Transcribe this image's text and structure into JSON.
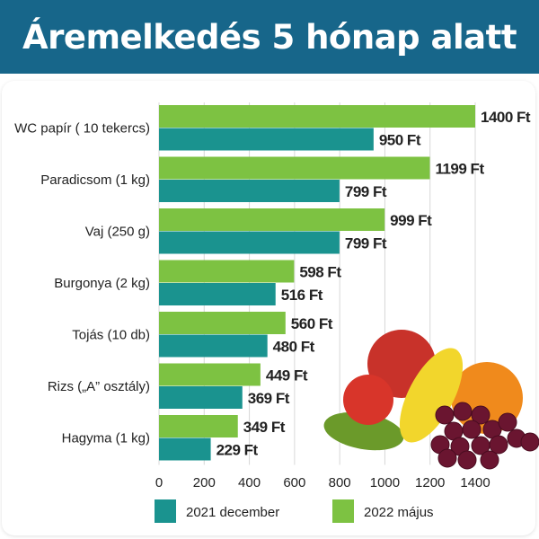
{
  "chart_data": {
    "type": "bar",
    "orientation": "horizontal",
    "title": "Áremelkedés 5 hónap alatt",
    "categories": [
      "WC papír ( 10 tekercs)",
      "Paradicsom (1 kg)",
      "Vaj (250 g)",
      "Burgonya (2 kg)",
      "Tojás (10 db)",
      "Rizs („A” osztály)",
      "Hagyma (1 kg)"
    ],
    "series": [
      {
        "name": "2022 május",
        "color": "#7dc242",
        "values": [
          1400,
          1199,
          999,
          598,
          560,
          449,
          349
        ],
        "labels": [
          "1400 Ft",
          "1199 Ft",
          "999 Ft",
          "598 Ft",
          "560 Ft",
          "449 Ft",
          "349 Ft"
        ]
      },
      {
        "name": "2021 december",
        "color": "#1a938f",
        "values": [
          950,
          799,
          799,
          516,
          480,
          369,
          229
        ],
        "labels": [
          "950 Ft",
          "799 Ft",
          "799 Ft",
          "516 Ft",
          "480 Ft",
          "369 Ft",
          "229 Ft"
        ]
      }
    ],
    "xlim": [
      0,
      1400
    ],
    "xticks": [
      "0",
      "200",
      "400",
      "600",
      "800",
      "1000",
      "1200",
      "1400"
    ],
    "xlabel": "",
    "ylabel": "",
    "grid": "vertical",
    "legend": {
      "placement": "bottom",
      "order": [
        "2021 december",
        "2022 május"
      ]
    },
    "decoration": "fruits-and-vegetables-illustration"
  },
  "colors": {
    "title_bar": "#17668a",
    "title_text": "#ffffff"
  }
}
